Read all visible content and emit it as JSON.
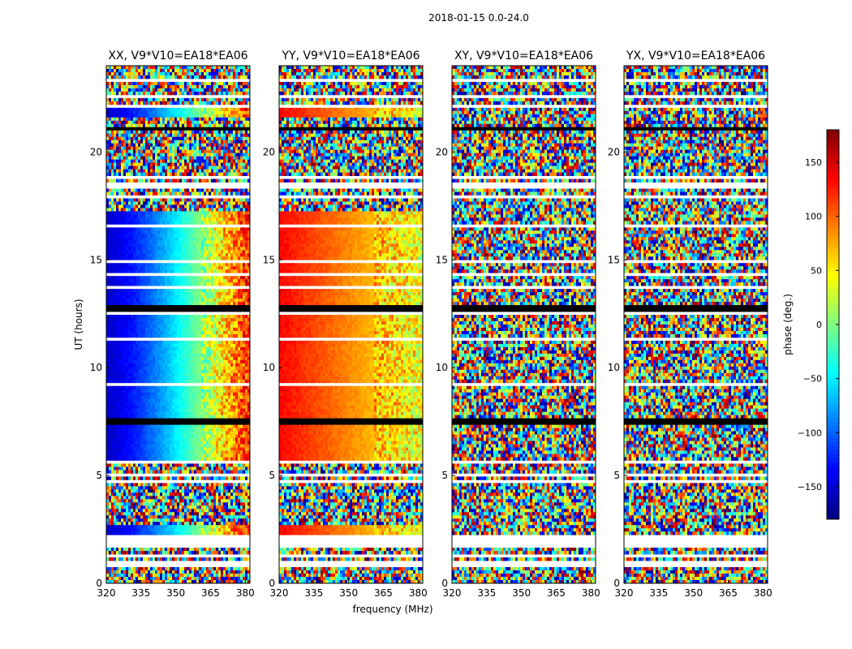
{
  "chart_data": {
    "type": "heatmap",
    "suptitle": "2018-01-15 0.0-24.0",
    "xlabel": "frequency (MHz)",
    "ylabel": "UT (hours)",
    "xlim": [
      320,
      382
    ],
    "ylim": [
      0,
      24
    ],
    "xticks": [
      320,
      335,
      350,
      365,
      380
    ],
    "yticks": [
      0,
      5,
      10,
      15,
      20
    ],
    "colorbar": {
      "label": "phase (deg.)",
      "range": [
        -180,
        180
      ],
      "ticks": [
        150,
        100,
        50,
        0,
        -50,
        -100,
        -150
      ],
      "colormap": "jet"
    },
    "panels": [
      {
        "title": "XX, V9*V10=EA18*EA06",
        "pattern": "gradient-blue-to-red"
      },
      {
        "title": "YY, V9*V10=EA18*EA06",
        "pattern": "gradient-red-to-yellow"
      },
      {
        "title": "XY, V9*V10=EA18*EA06",
        "pattern": "noise"
      },
      {
        "title": "YX, V9*V10=EA18*EA06",
        "pattern": "noise"
      }
    ]
  }
}
